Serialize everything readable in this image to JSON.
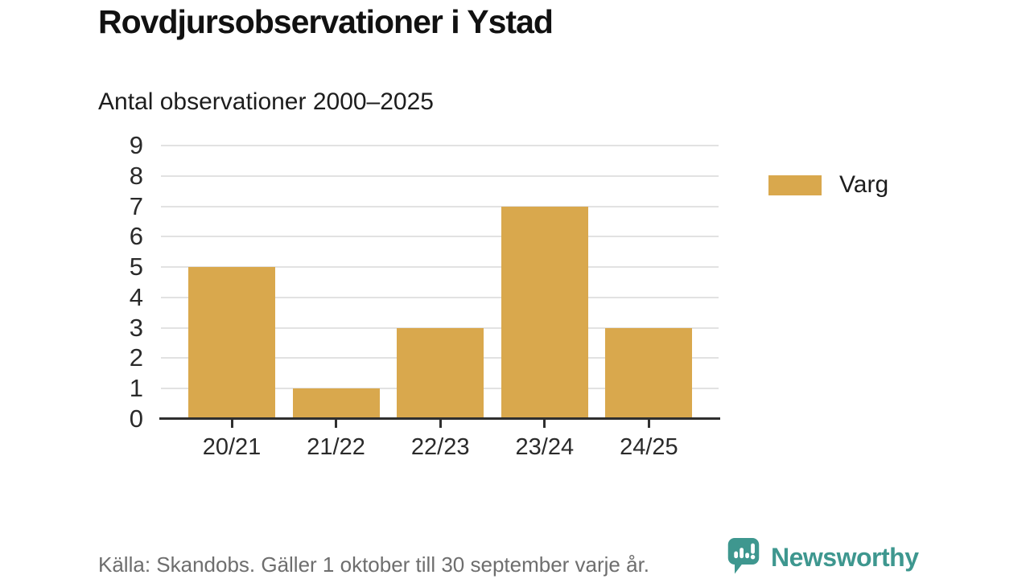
{
  "header": {
    "title": "Rovdjursobservationer i Ystad",
    "subtitle": "Antal observationer 2000–2025"
  },
  "legend": {
    "label": "Varg"
  },
  "footer": {
    "source": "Källa: Skandobs. Gäller 1 oktober till 30 september varje år.",
    "brand": "Newsworthy"
  },
  "colors": {
    "bar": "#d9a84d",
    "gridline": "#e2e2e2",
    "axis": "#2f2f2f",
    "brand_teal": "#3e978f",
    "source_gray": "#6e6e6e"
  },
  "chart_data": {
    "type": "bar",
    "categories": [
      "20/21",
      "21/22",
      "22/23",
      "23/24",
      "24/25"
    ],
    "series": [
      {
        "name": "Varg",
        "values": [
          5,
          1,
          3,
          7,
          3
        ]
      }
    ],
    "title": "Rovdjursobservationer i Ystad",
    "subtitle": "Antal observationer 2000–2025",
    "xlabel": "",
    "ylabel": "",
    "ylim": [
      0,
      9
    ],
    "yticks": [
      0,
      1,
      2,
      3,
      4,
      5,
      6,
      7,
      8,
      9
    ],
    "grid": "horizontal",
    "legend_position": "right",
    "bar_color": "#d9a84d"
  }
}
